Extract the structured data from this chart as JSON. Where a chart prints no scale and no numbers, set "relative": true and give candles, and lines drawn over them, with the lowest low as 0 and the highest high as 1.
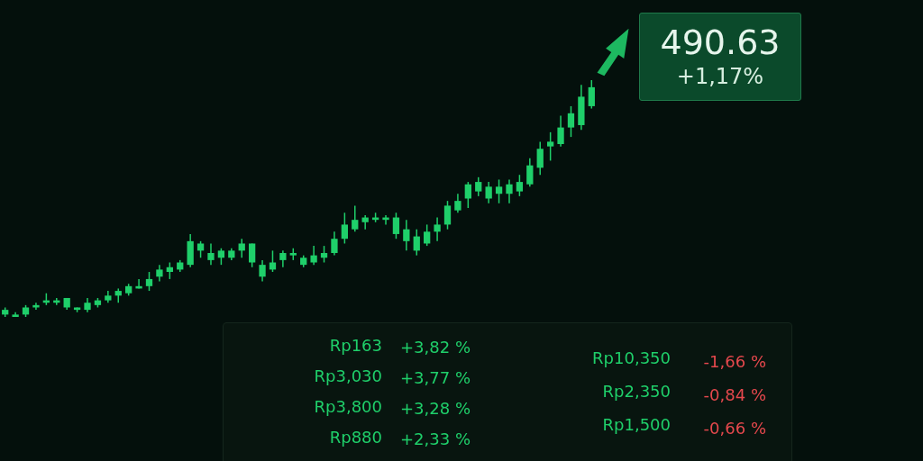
{
  "chart_data": {
    "type": "candlestick",
    "relative": true,
    "categories": [
      null,
      null,
      null,
      null,
      null,
      null,
      null,
      null,
      null,
      null,
      null,
      null,
      null,
      null,
      null,
      null,
      null,
      null,
      null,
      null,
      null,
      null,
      null,
      null,
      null,
      null,
      null,
      null,
      null,
      null,
      null,
      null,
      null,
      null,
      null,
      null,
      null,
      null,
      null,
      null,
      null,
      null,
      null,
      null,
      null,
      null,
      null,
      null,
      null,
      null,
      null,
      null,
      null,
      null,
      null,
      null,
      null,
      null
    ],
    "series": [
      {
        "color": "#1fcf6a",
        "ohlc": [
          [
            0.01,
            0.04,
            0.0,
            0.03
          ],
          [
            0.0,
            0.02,
            0.0,
            0.01
          ],
          [
            0.01,
            0.05,
            0.0,
            0.04
          ],
          [
            0.04,
            0.06,
            0.03,
            0.05
          ],
          [
            0.06,
            0.1,
            0.05,
            0.07
          ],
          [
            0.06,
            0.08,
            0.05,
            0.07
          ],
          [
            0.04,
            0.08,
            0.03,
            0.08
          ],
          [
            0.03,
            0.04,
            0.02,
            0.04
          ],
          [
            0.03,
            0.08,
            0.02,
            0.06
          ],
          [
            0.05,
            0.08,
            0.04,
            0.07
          ],
          [
            0.07,
            0.11,
            0.06,
            0.09
          ],
          [
            0.09,
            0.12,
            0.06,
            0.11
          ],
          [
            0.1,
            0.14,
            0.09,
            0.13
          ],
          [
            0.12,
            0.16,
            0.12,
            0.13
          ],
          [
            0.13,
            0.19,
            0.11,
            0.16
          ],
          [
            0.17,
            0.22,
            0.15,
            0.2
          ],
          [
            0.19,
            0.23,
            0.16,
            0.21
          ],
          [
            0.2,
            0.24,
            0.19,
            0.23
          ],
          [
            0.22,
            0.35,
            0.21,
            0.32
          ],
          [
            0.28,
            0.32,
            0.25,
            0.31
          ],
          [
            0.24,
            0.31,
            0.22,
            0.27
          ],
          [
            0.25,
            0.29,
            0.22,
            0.28
          ],
          [
            0.25,
            0.29,
            0.24,
            0.28
          ],
          [
            0.28,
            0.33,
            0.25,
            0.31
          ],
          [
            0.23,
            0.31,
            0.21,
            0.31
          ],
          [
            0.17,
            0.24,
            0.15,
            0.22
          ],
          [
            0.2,
            0.28,
            0.19,
            0.23
          ],
          [
            0.24,
            0.28,
            0.21,
            0.27
          ],
          [
            0.26,
            0.29,
            0.24,
            0.27
          ],
          [
            0.22,
            0.26,
            0.21,
            0.25
          ],
          [
            0.23,
            0.3,
            0.22,
            0.26
          ],
          [
            0.25,
            0.3,
            0.23,
            0.27
          ],
          [
            0.27,
            0.36,
            0.26,
            0.33
          ],
          [
            0.33,
            0.44,
            0.31,
            0.39
          ],
          [
            0.37,
            0.47,
            0.36,
            0.41
          ],
          [
            0.4,
            0.43,
            0.37,
            0.42
          ],
          [
            0.41,
            0.44,
            0.4,
            0.42
          ],
          [
            0.41,
            0.43,
            0.39,
            0.42
          ],
          [
            0.35,
            0.44,
            0.33,
            0.42
          ],
          [
            0.32,
            0.41,
            0.28,
            0.37
          ],
          [
            0.28,
            0.37,
            0.26,
            0.34
          ],
          [
            0.31,
            0.39,
            0.3,
            0.36
          ],
          [
            0.36,
            0.42,
            0.32,
            0.39
          ],
          [
            0.39,
            0.49,
            0.37,
            0.47
          ],
          [
            0.45,
            0.52,
            0.44,
            0.49
          ],
          [
            0.5,
            0.57,
            0.46,
            0.56
          ],
          [
            0.53,
            0.59,
            0.51,
            0.57
          ],
          [
            0.5,
            0.57,
            0.48,
            0.55
          ],
          [
            0.52,
            0.58,
            0.48,
            0.55
          ],
          [
            0.52,
            0.58,
            0.48,
            0.56
          ],
          [
            0.53,
            0.6,
            0.51,
            0.57
          ],
          [
            0.56,
            0.67,
            0.55,
            0.64
          ],
          [
            0.63,
            0.74,
            0.6,
            0.71
          ],
          [
            0.72,
            0.78,
            0.66,
            0.74
          ],
          [
            0.73,
            0.85,
            0.72,
            0.8
          ],
          [
            0.8,
            0.89,
            0.76,
            0.86
          ],
          [
            0.81,
            0.98,
            0.79,
            0.93
          ],
          [
            0.89,
            1.0,
            0.88,
            0.97
          ]
        ]
      }
    ],
    "annotations": [
      "490.63",
      "+1,17%",
      "Rp163",
      "+3,82 %",
      "Rp3,030",
      "+3,77 %",
      "Rp3,800",
      "+3,28 %",
      "Rp880",
      "+2,33 %",
      "Rp10,350",
      "-1,66 %",
      "Rp2,350",
      "-0,84 %",
      "Rp1,500",
      "-0,66 %"
    ]
  }
}
